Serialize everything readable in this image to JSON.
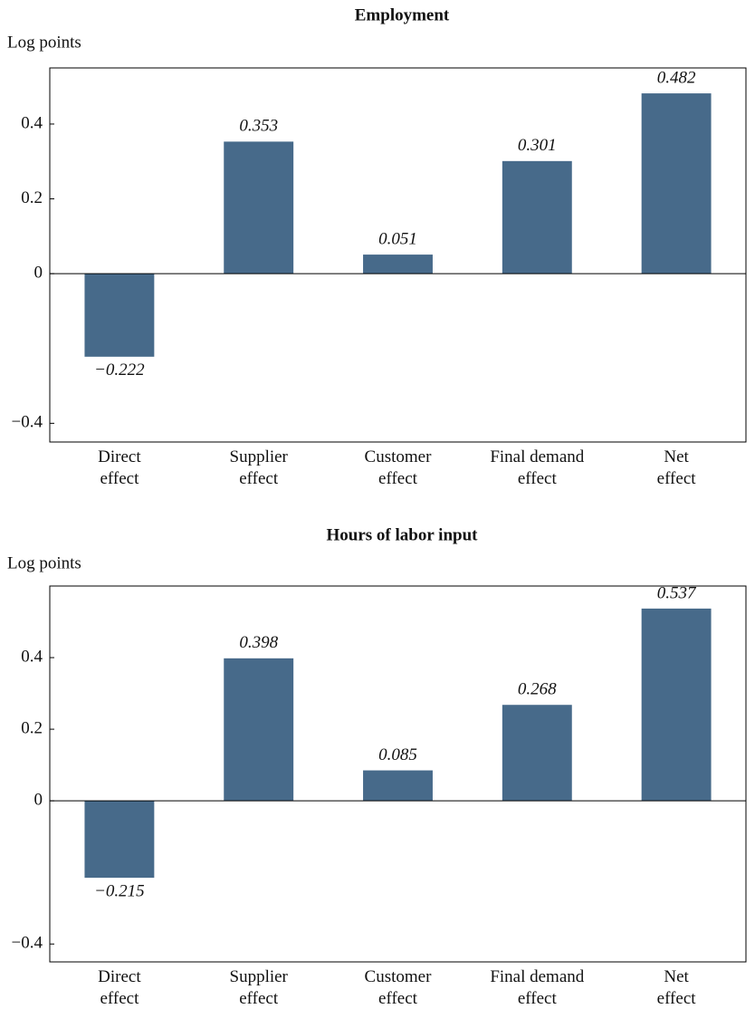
{
  "chart_data": [
    {
      "type": "bar",
      "title": "Employment",
      "ylabel": "Log points",
      "categories": [
        "Direct effect",
        "Supplier effect",
        "Customer effect",
        "Final demand effect",
        "Net effect"
      ],
      "values": [
        -0.222,
        0.353,
        0.051,
        0.301,
        0.482
      ],
      "value_labels": [
        "−0.222",
        "0.353",
        "0.051",
        "0.301",
        "0.482"
      ],
      "color": "#476a8a",
      "ylim": [
        -0.45,
        0.55
      ],
      "yticks": [
        {
          "value": -0.4,
          "label": "−0.4"
        },
        0,
        0.2,
        0.4
      ],
      "grid": false
    },
    {
      "type": "bar",
      "title": "Hours of labor input",
      "ylabel": "Log points",
      "categories": [
        "Direct effect",
        "Supplier effect",
        "Customer effect",
        "Final demand effect",
        "Net effect"
      ],
      "values": [
        -0.215,
        0.398,
        0.085,
        0.268,
        0.537
      ],
      "value_labels": [
        "−0.215",
        "0.398",
        "0.085",
        "0.268",
        "0.537"
      ],
      "color": "#476a8a",
      "ylim": [
        -0.45,
        0.6
      ],
      "yticks": [
        {
          "value": -0.4,
          "label": "−0.4"
        },
        0,
        0.2,
        0.4
      ],
      "grid": false
    }
  ]
}
